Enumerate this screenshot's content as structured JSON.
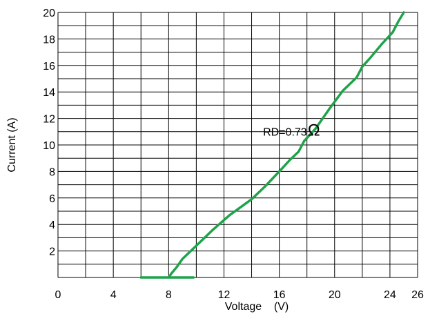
{
  "chart_data": {
    "type": "line",
    "xlabel": "Voltage    (V)",
    "ylabel": "Current (A)",
    "xlim": [
      0,
      26
    ],
    "ylim": [
      0,
      20
    ],
    "x_ticks": [
      "0",
      "4",
      "8",
      "12",
      "16",
      "20",
      "24",
      "26"
    ],
    "y_ticks": [
      "2",
      "4",
      "6",
      "8",
      "10",
      "12",
      "14",
      "16",
      "18",
      "20"
    ],
    "grid": true,
    "line_color": "#1fa34a",
    "series": [
      {
        "x": [
          6.0,
          9.8,
          8.6,
          8.4,
          8.0,
          8.2,
          8.6,
          9.0,
          9.4,
          10.2,
          11.2,
          12.4,
          14.0,
          15.0,
          16.0,
          16.8,
          17.4,
          17.8,
          18.6,
          19.6,
          20.6,
          21.2,
          21.6,
          22.0,
          22.6,
          23.4,
          24.2,
          24.6,
          25.0
        ],
        "y": [
          0.0,
          0.0,
          0.0,
          0.0,
          0.0,
          0.3,
          0.8,
          1.4,
          1.8,
          2.6,
          3.6,
          4.7,
          5.9,
          6.9,
          8.0,
          8.9,
          9.5,
          10.3,
          11.2,
          12.7,
          14.1,
          14.7,
          15.1,
          15.9,
          16.6,
          17.6,
          18.5,
          19.3,
          20.0
        ]
      }
    ],
    "annotation": {
      "text": "RD=0.73",
      "symbol": "Ω",
      "x": 18.2,
      "y": 10.7
    }
  }
}
